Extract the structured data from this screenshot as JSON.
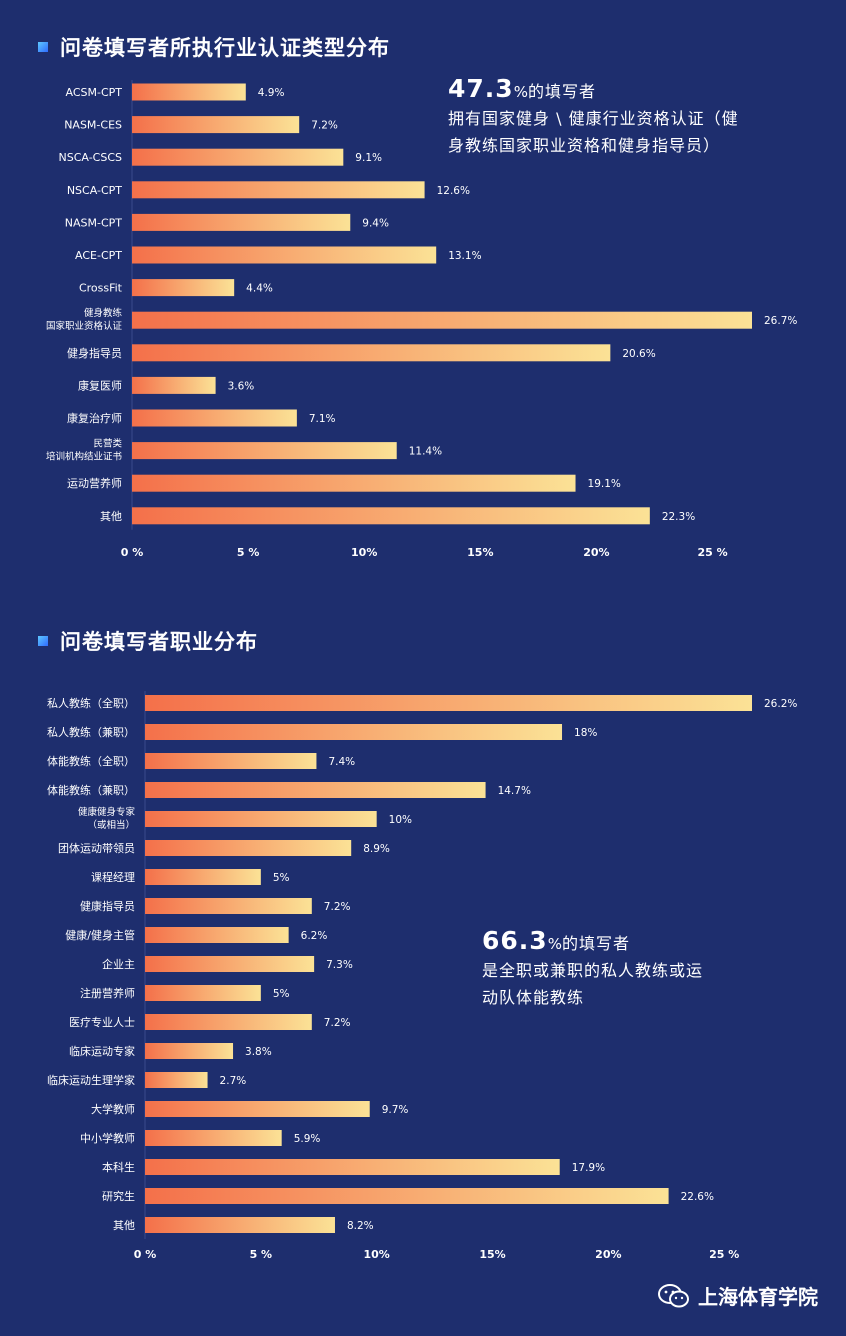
{
  "section1": {
    "title": "问卷填写者所执行业认证类型分布",
    "annotation": {
      "big": "47.3",
      "pct": "%",
      "suffix": "的填写者",
      "lines": [
        "拥有国家健身 \\ 健康行业资格认证（健",
        "身教练国家职业资格和健身指导员）"
      ]
    }
  },
  "section2": {
    "title": "问卷填写者职业分布",
    "annotation": {
      "big": "66.3",
      "pct": "%",
      "suffix": "的填写者",
      "lines": [
        "是全职或兼职的私人教练或运",
        "动队体能教练"
      ]
    }
  },
  "watermark": {
    "text": "上海体育学院",
    "icon": "wechat-icon"
  },
  "colors": {
    "background": "#1e2e6e",
    "bar_start": "#f4704a",
    "bar_end": "#fbe296",
    "grid": "#3a4b8c"
  },
  "chart_data": [
    {
      "type": "bar",
      "orientation": "horizontal",
      "categories": [
        "ACSM-CPT",
        "NASM-CES",
        "NSCA-CSCS",
        "NSCA-CPT",
        "NASM-CPT",
        "ACE-CPT",
        "CrossFit",
        "健身教练\n国家职业资格认证",
        "健身指导员",
        "康复医师",
        "康复治疗师",
        "民营类\n培训机构结业证书",
        "运动营养师",
        "其他"
      ],
      "values": [
        4.9,
        7.2,
        9.1,
        12.6,
        9.4,
        13.1,
        4.4,
        26.7,
        20.6,
        3.6,
        7.1,
        11.4,
        19.1,
        22.3
      ],
      "value_labels": [
        "4.9%",
        "7.2%",
        "9.1%",
        "12.6%",
        "9.4%",
        "13.1%",
        "4.4%",
        "26.7%",
        "20.6%",
        "3.6%",
        "7.1%",
        "11.4%",
        "19.1%",
        "22.3%"
      ],
      "ticks": [
        "0 %",
        "5 %",
        "10%",
        "15%",
        "20%",
        "25 %"
      ],
      "tick_values": [
        0,
        5,
        10,
        15,
        20,
        25
      ],
      "xlim": [
        0,
        26.7
      ]
    },
    {
      "type": "bar",
      "orientation": "horizontal",
      "categories": [
        "私人教练（全职）",
        "私人教练（兼职）",
        "体能教练（全职）",
        "体能教练（兼职）",
        "健康健身专家\n（或相当）",
        "团体运动带领员",
        "课程经理",
        "健康指导员",
        "健康/健身主管",
        "企业主",
        "注册营养师",
        "医疗专业人士",
        "临床运动专家",
        "临床运动生理学家",
        "大学教师",
        "中小学教师",
        "本科生",
        "研究生",
        "其他"
      ],
      "values": [
        26.2,
        18,
        7.4,
        14.7,
        10,
        8.9,
        5,
        7.2,
        6.2,
        7.3,
        5,
        7.2,
        3.8,
        2.7,
        9.7,
        5.9,
        17.9,
        22.6,
        8.2
      ],
      "value_labels": [
        "26.2%",
        "18%",
        "7.4%",
        "14.7%",
        "10%",
        "8.9%",
        "5%",
        "7.2%",
        "6.2%",
        "7.3%",
        "5%",
        "7.2%",
        "3.8%",
        "2.7%",
        "9.7%",
        "5.9%",
        "17.9%",
        "22.6%",
        "8.2%"
      ],
      "ticks": [
        "0 %",
        "5 %",
        "10%",
        "15%",
        "20%",
        "25 %"
      ],
      "tick_values": [
        0,
        5,
        10,
        15,
        20,
        25
      ],
      "xlim": [
        0,
        26.2
      ]
    }
  ]
}
